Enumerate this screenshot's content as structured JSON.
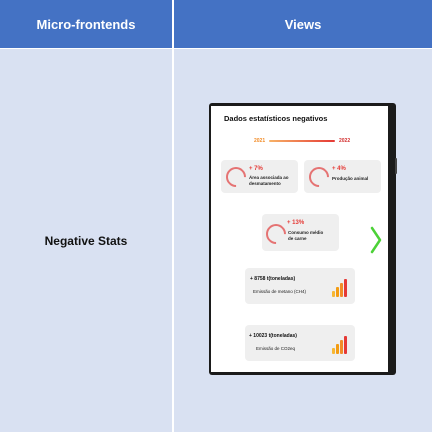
{
  "table": {
    "headers": [
      "Micro-frontends",
      "Views"
    ],
    "row": {
      "label": "Negative Stats"
    }
  },
  "screen": {
    "title": "Dados estatísticos negativos",
    "years": [
      "2021",
      "2022"
    ],
    "cards": [
      {
        "pct": "+ 7%",
        "label_lines": [
          "Área associada ao",
          "desmatamento"
        ]
      },
      {
        "pct": "+ 4%",
        "label_lines": [
          "Produção animal"
        ]
      },
      {
        "pct": "+ 13%",
        "label_lines": [
          "Consumo médio",
          "de carne"
        ]
      }
    ],
    "stats": [
      {
        "value": "+ 8758 t(toneladas)",
        "label": "Emissão de metano (CH4)"
      },
      {
        "value": "+ 10023 t(toneladas)",
        "label": "Emissão de CO2eq"
      }
    ]
  },
  "colors": {
    "header": "#4472c4",
    "cell": "#d9e1f2",
    "accent_red": "#e53935",
    "accent_orange": "#f28c28",
    "chevron": "#4cd137"
  },
  "icons": [
    "progress-ring-icon",
    "bar-chart-icon",
    "chevron-right-icon"
  ]
}
